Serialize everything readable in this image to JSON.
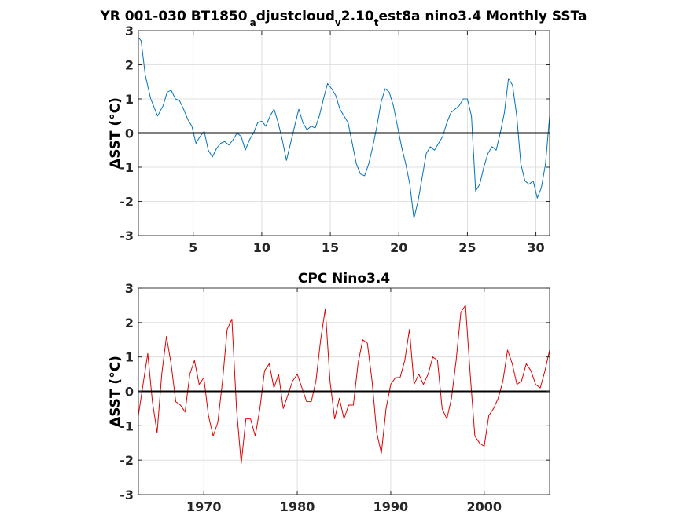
{
  "figure": {
    "title_parts": {
      "a": "YR 001-030 BT1850",
      "b": "a",
      "c": "djustcloud",
      "d": "v",
      "e": "2.10",
      "f": "t",
      "g": "est8a nino3.4 Monthly SSTa"
    }
  },
  "chart_data": [
    {
      "type": "line",
      "title": "",
      "xlabel": "",
      "ylabel": "ΔSST (°C)",
      "xlim": [
        1,
        31
      ],
      "ylim": [
        -3,
        3
      ],
      "xticks": [
        5,
        10,
        15,
        20,
        25,
        30
      ],
      "yticks": [
        -3,
        -2,
        -1,
        0,
        1,
        2,
        3
      ],
      "grid": true,
      "zero_line": true,
      "line_color": "#0072bd",
      "series": [
        {
          "x": [
            1.0,
            1.2,
            1.5,
            1.9,
            2.4,
            2.8,
            3.1,
            3.4,
            3.7,
            4.0,
            4.3,
            4.6,
            4.9,
            5.2,
            5.5,
            5.8,
            6.1,
            6.4,
            6.7,
            7.0,
            7.3,
            7.6,
            7.9,
            8.2,
            8.5,
            8.8,
            9.1,
            9.4,
            9.7,
            10.0,
            10.3,
            10.6,
            10.9,
            11.2,
            11.5,
            11.8,
            12.1,
            12.4,
            12.7,
            13.0,
            13.3,
            13.6,
            13.9,
            14.2,
            14.5,
            14.8,
            15.1,
            15.4,
            15.7,
            16.0,
            16.3,
            16.6,
            16.9,
            17.2,
            17.5,
            17.8,
            18.1,
            18.4,
            18.7,
            19.0,
            19.3,
            19.6,
            19.9,
            20.2,
            20.5,
            20.8,
            21.1,
            21.4,
            21.7,
            22.0,
            22.3,
            22.6,
            22.9,
            23.2,
            23.5,
            23.8,
            24.1,
            24.4,
            24.7,
            25.0,
            25.3,
            25.6,
            25.9,
            26.2,
            26.5,
            26.8,
            27.1,
            27.4,
            27.7,
            28.0,
            28.3,
            28.6,
            28.9,
            29.2,
            29.5,
            29.8,
            30.1,
            30.4,
            30.7,
            31.0
          ],
          "y": [
            2.8,
            2.7,
            1.7,
            1.0,
            0.5,
            0.8,
            1.2,
            1.25,
            1.0,
            0.95,
            0.7,
            0.4,
            0.2,
            -0.3,
            -0.1,
            0.05,
            -0.5,
            -0.7,
            -0.45,
            -0.3,
            -0.25,
            -0.35,
            -0.2,
            0.0,
            -0.1,
            -0.5,
            -0.2,
            0.0,
            0.3,
            0.35,
            0.2,
            0.5,
            0.7,
            0.3,
            -0.2,
            -0.8,
            -0.3,
            0.2,
            0.7,
            0.3,
            0.1,
            0.2,
            0.15,
            0.5,
            1.0,
            1.45,
            1.3,
            1.1,
            0.7,
            0.5,
            0.3,
            -0.3,
            -0.9,
            -1.2,
            -1.25,
            -0.9,
            -0.4,
            0.2,
            0.9,
            1.3,
            1.2,
            0.8,
            0.2,
            -0.4,
            -0.9,
            -1.5,
            -2.5,
            -2.0,
            -1.3,
            -0.6,
            -0.4,
            -0.5,
            -0.3,
            -0.1,
            0.3,
            0.6,
            0.7,
            0.8,
            1.0,
            1.0,
            0.5,
            -1.7,
            -1.5,
            -1.0,
            -0.6,
            -0.4,
            -0.5,
            0.0,
            0.6,
            1.6,
            1.4,
            0.5,
            -0.9,
            -1.4,
            -1.5,
            -1.4,
            -1.9,
            -1.6,
            -0.9,
            0.5
          ]
        }
      ]
    },
    {
      "type": "line",
      "title": "CPC Nino3.4",
      "xlabel": "",
      "ylabel": "ΔSST (°C)",
      "xlim": [
        1963,
        2007
      ],
      "ylim": [
        -3,
        3
      ],
      "xticks": [
        1970,
        1980,
        1990,
        2000
      ],
      "yticks": [
        -3,
        -2,
        -1,
        0,
        1,
        2,
        3
      ],
      "grid": true,
      "zero_line": true,
      "line_color": "#e00000",
      "series": [
        {
          "x": [
            1963.0,
            1963.5,
            1964.0,
            1964.5,
            1965.0,
            1965.5,
            1966.0,
            1966.5,
            1967.0,
            1967.5,
            1968.0,
            1968.5,
            1969.0,
            1969.5,
            1970.0,
            1970.5,
            1971.0,
            1971.5,
            1972.0,
            1972.5,
            1973.0,
            1973.5,
            1974.0,
            1974.5,
            1975.0,
            1975.5,
            1976.0,
            1976.5,
            1977.0,
            1977.5,
            1978.0,
            1978.5,
            1979.0,
            1979.5,
            1980.0,
            1980.5,
            1981.0,
            1981.5,
            1982.0,
            1982.5,
            1983.0,
            1983.5,
            1984.0,
            1984.5,
            1985.0,
            1985.5,
            1986.0,
            1986.5,
            1987.0,
            1987.5,
            1988.0,
            1988.5,
            1989.0,
            1989.5,
            1990.0,
            1990.5,
            1991.0,
            1991.5,
            1992.0,
            1992.5,
            1993.0,
            1993.5,
            1994.0,
            1994.5,
            1995.0,
            1995.5,
            1996.0,
            1996.5,
            1997.0,
            1997.5,
            1998.0,
            1998.5,
            1999.0,
            1999.5,
            2000.0,
            2000.5,
            2001.0,
            2001.5,
            2002.0,
            2002.5,
            2003.0,
            2003.5,
            2004.0,
            2004.5,
            2005.0,
            2005.5,
            2006.0,
            2006.5,
            2007.0
          ],
          "y": [
            -0.7,
            0.2,
            1.1,
            -0.3,
            -1.2,
            0.5,
            1.6,
            0.8,
            -0.3,
            -0.4,
            -0.6,
            0.5,
            0.9,
            0.2,
            0.4,
            -0.7,
            -1.3,
            -0.9,
            0.3,
            1.8,
            2.1,
            -0.5,
            -2.1,
            -0.8,
            -0.8,
            -1.3,
            -0.5,
            0.6,
            0.8,
            0.1,
            0.5,
            -0.5,
            -0.1,
            0.3,
            0.5,
            0.1,
            -0.3,
            -0.3,
            0.3,
            1.5,
            2.4,
            0.3,
            -0.8,
            -0.2,
            -0.8,
            -0.4,
            -0.4,
            0.8,
            1.5,
            1.4,
            0.3,
            -1.2,
            -1.8,
            -0.5,
            0.2,
            0.4,
            0.4,
            0.9,
            1.8,
            0.2,
            0.5,
            0.2,
            0.5,
            1.0,
            0.9,
            -0.5,
            -0.8,
            -0.2,
            0.9,
            2.3,
            2.5,
            0.5,
            -1.3,
            -1.5,
            -1.6,
            -0.7,
            -0.5,
            -0.2,
            0.3,
            1.2,
            0.8,
            0.2,
            0.3,
            0.8,
            0.6,
            0.2,
            0.1,
            0.6,
            1.2
          ]
        }
      ]
    }
  ]
}
